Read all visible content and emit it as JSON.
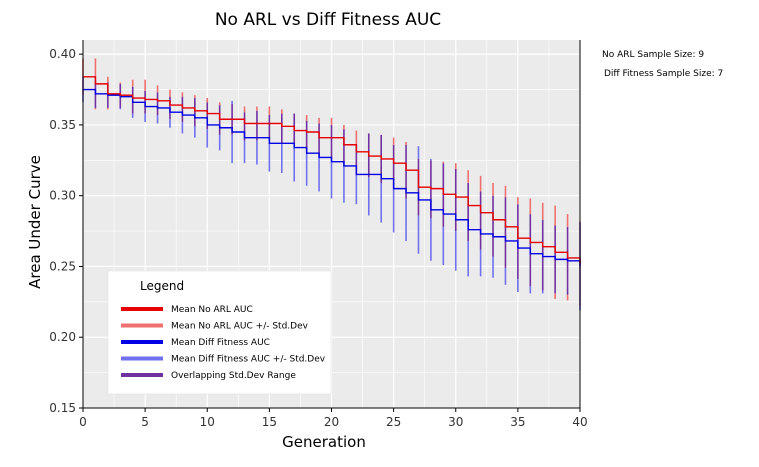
{
  "side_notes": {
    "no_arl_sample": "No ARL Sample Size: 9",
    "diff_fitness_sample": "Diff Fitness Sample Size: 7"
  },
  "colors": {
    "plot_bg": "#ebebeb",
    "grid": "#ffffff",
    "mean_no_arl": "#e60000",
    "std_no_arl": "#f07070",
    "mean_diff_fitness": "#0000e6",
    "std_diff_fitness": "#7070f0",
    "overlap": "#7030a0"
  },
  "chart_data": {
    "type": "line",
    "title": "No ARL vs Diff Fitness AUC",
    "xlabel": "Generation",
    "ylabel": "Area Under Curve",
    "xlim": [
      0,
      40
    ],
    "ylim": [
      0.15,
      0.41
    ],
    "xticks": [
      0,
      5,
      10,
      15,
      20,
      25,
      30,
      35,
      40
    ],
    "yticks": [
      0.15,
      0.2,
      0.25,
      0.3,
      0.35,
      0.4
    ],
    "ytick_labels": [
      "0.15",
      "0.20",
      "0.25",
      "0.30",
      "0.35",
      "0.40"
    ],
    "grid": true,
    "legend": {
      "title": "Legend",
      "placement": "lower-left",
      "entries": [
        {
          "label": "Mean No ARL AUC",
          "color": "#e60000"
        },
        {
          "label": "Mean No ARL AUC +/- Std.Dev",
          "color": "#f07070"
        },
        {
          "label": "Mean Diff Fitness AUC",
          "color": "#0000e6"
        },
        {
          "label": "Mean Diff Fitness AUC +/- Std.Dev",
          "color": "#7070f0"
        },
        {
          "label": "Overlapping Std.Dev Range",
          "color": "#7030a0"
        }
      ]
    },
    "x": [
      0,
      1,
      2,
      3,
      4,
      5,
      6,
      7,
      8,
      9,
      10,
      11,
      12,
      13,
      14,
      15,
      16,
      17,
      18,
      19,
      20,
      21,
      22,
      23,
      24,
      25,
      26,
      27,
      28,
      29,
      30,
      31,
      32,
      33,
      34,
      35,
      36,
      37,
      38,
      39,
      40
    ],
    "series": [
      {
        "name": "Mean No ARL AUC",
        "values": [
          0.384,
          0.379,
          0.372,
          0.371,
          0.369,
          0.368,
          0.367,
          0.364,
          0.362,
          0.36,
          0.358,
          0.354,
          0.354,
          0.351,
          0.351,
          0.351,
          0.349,
          0.346,
          0.345,
          0.341,
          0.341,
          0.336,
          0.331,
          0.328,
          0.326,
          0.323,
          0.318,
          0.306,
          0.305,
          0.301,
          0.299,
          0.293,
          0.288,
          0.283,
          0.278,
          0.27,
          0.267,
          0.264,
          0.26,
          0.256,
          0.252
        ],
        "lower": [
          0.371,
          0.361,
          0.361,
          0.362,
          0.358,
          0.358,
          0.357,
          0.354,
          0.352,
          0.349,
          0.347,
          0.343,
          0.343,
          0.339,
          0.339,
          0.339,
          0.337,
          0.334,
          0.332,
          0.328,
          0.327,
          0.322,
          0.316,
          0.313,
          0.309,
          0.306,
          0.298,
          0.286,
          0.284,
          0.278,
          0.275,
          0.268,
          0.262,
          0.257,
          0.249,
          0.241,
          0.236,
          0.233,
          0.227,
          0.226,
          0.222
        ],
        "upper": [
          0.397,
          0.397,
          0.384,
          0.38,
          0.382,
          0.382,
          0.378,
          0.375,
          0.373,
          0.371,
          0.369,
          0.366,
          0.365,
          0.363,
          0.363,
          0.363,
          0.361,
          0.358,
          0.357,
          0.355,
          0.355,
          0.35,
          0.346,
          0.344,
          0.343,
          0.341,
          0.338,
          0.326,
          0.325,
          0.324,
          0.323,
          0.318,
          0.314,
          0.309,
          0.307,
          0.299,
          0.298,
          0.295,
          0.293,
          0.287,
          0.282
        ]
      },
      {
        "name": "Mean Diff Fitness AUC",
        "values": [
          0.375,
          0.372,
          0.371,
          0.37,
          0.366,
          0.363,
          0.362,
          0.359,
          0.357,
          0.355,
          0.35,
          0.348,
          0.345,
          0.341,
          0.341,
          0.337,
          0.337,
          0.334,
          0.33,
          0.327,
          0.324,
          0.321,
          0.315,
          0.315,
          0.312,
          0.305,
          0.302,
          0.297,
          0.29,
          0.287,
          0.283,
          0.276,
          0.273,
          0.271,
          0.268,
          0.263,
          0.259,
          0.257,
          0.255,
          0.254,
          0.25
        ],
        "lower": [
          0.366,
          0.362,
          0.362,
          0.361,
          0.355,
          0.352,
          0.351,
          0.348,
          0.344,
          0.341,
          0.334,
          0.332,
          0.323,
          0.323,
          0.322,
          0.317,
          0.316,
          0.31,
          0.307,
          0.303,
          0.298,
          0.295,
          0.294,
          0.286,
          0.281,
          0.274,
          0.268,
          0.259,
          0.254,
          0.251,
          0.247,
          0.243,
          0.243,
          0.242,
          0.237,
          0.232,
          0.231,
          0.231,
          0.231,
          0.23,
          0.219
        ],
        "upper": [
          0.384,
          0.382,
          0.38,
          0.379,
          0.377,
          0.374,
          0.373,
          0.37,
          0.37,
          0.369,
          0.366,
          0.364,
          0.367,
          0.359,
          0.36,
          0.357,
          0.358,
          0.358,
          0.353,
          0.351,
          0.35,
          0.347,
          0.336,
          0.344,
          0.343,
          0.336,
          0.336,
          0.335,
          0.326,
          0.323,
          0.319,
          0.309,
          0.303,
          0.3,
          0.299,
          0.294,
          0.287,
          0.283,
          0.279,
          0.278,
          0.281
        ]
      }
    ]
  }
}
